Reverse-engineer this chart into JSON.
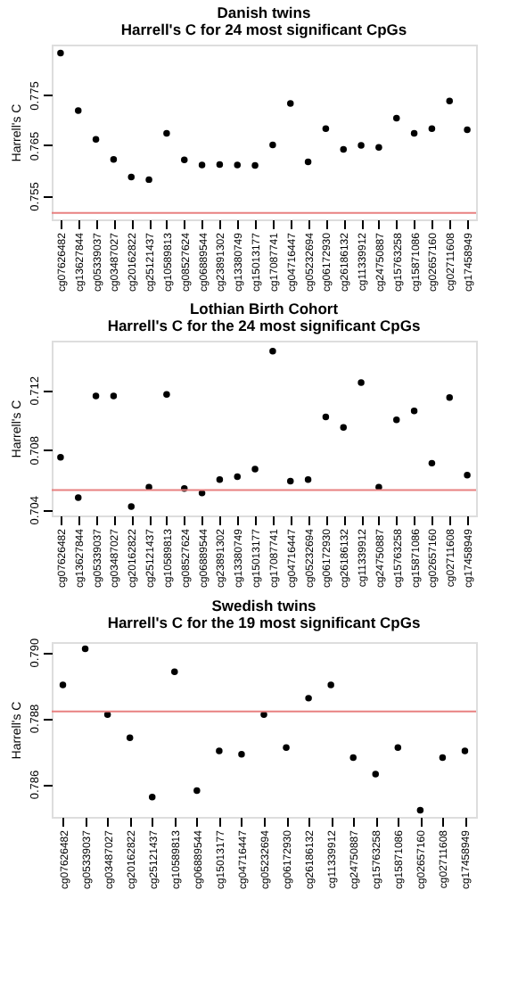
{
  "chart_data": [
    {
      "type": "scatter",
      "title": "Danish twins",
      "subtitle": "Harrell's C for 24 most significant CpGs",
      "ylabel": "Harrell's C",
      "categories": [
        "cg07626482",
        "cg13627844",
        "cg05339037",
        "cg03487027",
        "cg20162822",
        "cg25121437",
        "cg10589813",
        "cg08527624",
        "cg06889544",
        "cg23891302",
        "cg13380749",
        "cg15013177",
        "cg17087741",
        "cg04716447",
        "cg05232694",
        "cg06172930",
        "cg26186132",
        "cg11339912",
        "cg24750887",
        "cg15763258",
        "cg15871086",
        "cg02657160",
        "cg02711608",
        "cg17458949"
      ],
      "series": [
        {
          "color": "#000000",
          "values": [
            0.7833,
            0.7719,
            0.7662,
            0.7622,
            0.7587,
            0.7582,
            0.7674,
            0.7621,
            0.7611,
            0.7612,
            0.7611,
            0.761,
            0.7651,
            0.7733,
            0.7617,
            0.7683,
            0.7642,
            0.765,
            0.7646,
            0.7704,
            0.7674,
            0.7683,
            0.7738,
            0.7681
          ]
        }
      ],
      "ylim": [
        0.7503,
        0.785
      ],
      "yticks": [
        0.755,
        0.765,
        0.775
      ],
      "marker": "circle",
      "grid": false,
      "ref_lines": [
        {
          "axis": "y",
          "value": 0.7516,
          "color": "#e88080"
        }
      ]
    },
    {
      "type": "scatter",
      "title": "Lothian Birth Cohort",
      "subtitle": "Harrell's C for the 24 most significant CpGs",
      "ylabel": "Harrell's C",
      "categories": [
        "cg07626482",
        "cg13627844",
        "cg05339037",
        "cg03487027",
        "cg20162822",
        "cg25121437",
        "cg10589813",
        "cg08527624",
        "cg06889544",
        "cg23891302",
        "cg13380749",
        "cg15013177",
        "cg17087741",
        "cg04716447",
        "cg05232694",
        "cg06172930",
        "cg26186132",
        "cg11339912",
        "cg24750887",
        "cg15763258",
        "cg15871086",
        "cg02657160",
        "cg02711608",
        "cg17458949"
      ],
      "series": [
        {
          "color": "#000000",
          "values": [
            0.7075,
            0.7048,
            0.7116,
            0.7116,
            0.7042,
            0.7055,
            0.7117,
            0.7054,
            0.7051,
            0.706,
            0.7062,
            0.7067,
            0.7146,
            0.7059,
            0.706,
            0.7102,
            0.7095,
            0.7125,
            0.7055,
            0.71,
            0.7106,
            0.7071,
            0.7115,
            0.7063
          ]
        }
      ],
      "ylim": [
        0.7036,
        0.7153
      ],
      "yticks": [
        0.704,
        0.708,
        0.712
      ],
      "marker": "circle",
      "grid": false,
      "ref_lines": [
        {
          "axis": "y",
          "value": 0.7053,
          "color": "#e88080"
        }
      ]
    },
    {
      "type": "scatter",
      "title": "Swedish twins",
      "subtitle": "Harrell's C for the 19 most significant CpGs",
      "ylabel": "Harrell's C",
      "categories": [
        "cg07626482",
        "cg05339037",
        "cg03487027",
        "cg20162822",
        "cg25121437",
        "cg10589813",
        "cg06889544",
        "cg15013177",
        "cg04716447",
        "cg05232694",
        "cg06172930",
        "cg26186132",
        "cg11339912",
        "cg24750887",
        "cg15763258",
        "cg15871086",
        "cg02657160",
        "cg02711608",
        "cg17458949"
      ],
      "series": [
        {
          "color": "#000000",
          "values": [
            0.789,
            0.7901,
            0.7881,
            0.7874,
            0.7856,
            0.7894,
            0.7858,
            0.787,
            0.7869,
            0.7881,
            0.7871,
            0.7886,
            0.789,
            0.7868,
            0.7863,
            0.7871,
            0.7852,
            0.7868,
            0.787
          ]
        }
      ],
      "ylim": [
        0.785,
        0.7903
      ],
      "yticks": [
        0.786,
        0.788,
        {
          "value": 0.79,
          "label": "0.790"
        }
      ],
      "marker": "circle",
      "grid": false,
      "ref_lines": [
        {
          "axis": "y",
          "value": 0.7882,
          "color": "#e88080"
        }
      ]
    }
  ]
}
